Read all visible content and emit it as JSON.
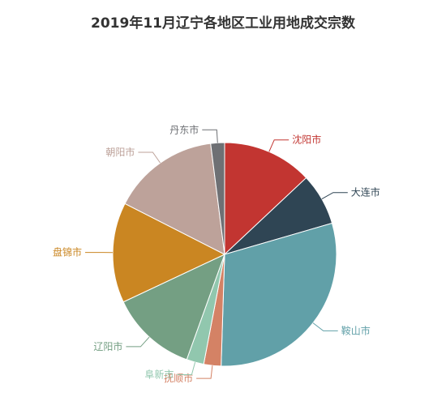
{
  "chart_data": {
    "type": "pie",
    "title": "2019年11月辽宁各地区工业用地成交宗数",
    "slices": [
      {
        "name": "沈阳市",
        "value": 13.0,
        "color": "#c23531"
      },
      {
        "name": "大连市",
        "value": 7.5,
        "color": "#2f4554"
      },
      {
        "name": "鞍山市",
        "value": 30.0,
        "color": "#61a0a8"
      },
      {
        "name": "抚顺市",
        "value": 2.5,
        "color": "#d48265"
      },
      {
        "name": "阜新市",
        "value": 2.5,
        "color": "#91c7ae"
      },
      {
        "name": "辽阳市",
        "value": 12.5,
        "color": "#749f83"
      },
      {
        "name": "盘锦市",
        "value": 14.5,
        "color": "#ca8622"
      },
      {
        "name": "朝阳市",
        "value": 15.5,
        "color": "#bda29a"
      },
      {
        "name": "丹东市",
        "value": 2.0,
        "color": "#6e7074"
      }
    ]
  }
}
